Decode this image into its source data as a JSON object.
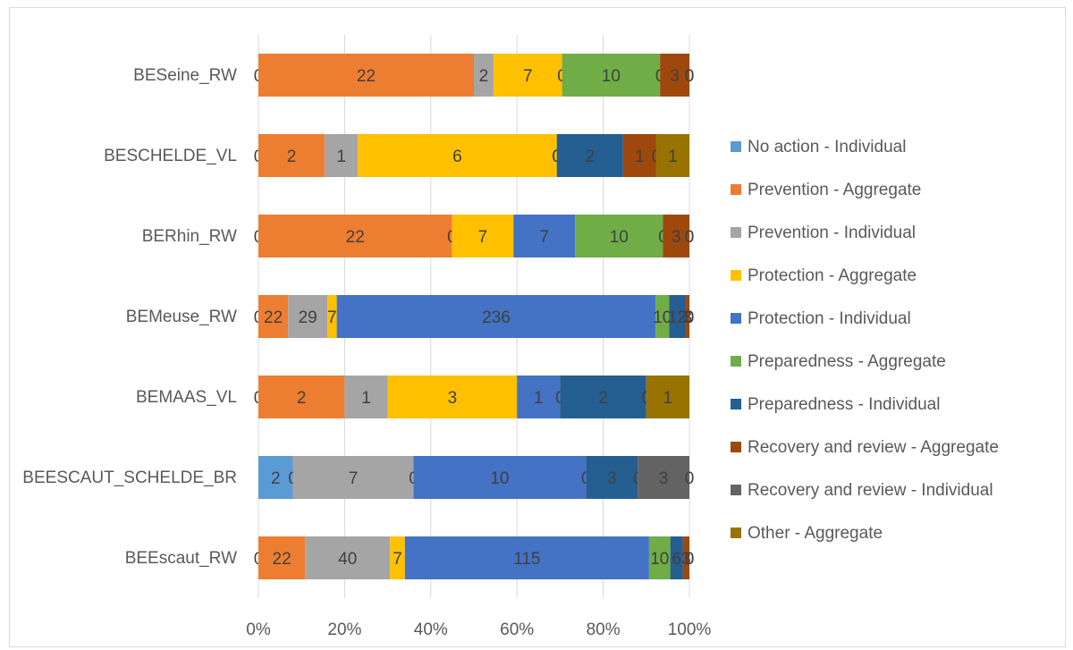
{
  "chart_data": {
    "type": "bar",
    "orientation": "horizontal",
    "stacked": "100%",
    "categories": [
      "BESeine_RW",
      "BESCHELDE_VL",
      "BERhin_RW",
      "BEMeuse_RW",
      "BEMAAS_VL",
      "BEESCAUT_SCHELDE_BR",
      "BEEscaut_RW"
    ],
    "series": [
      {
        "name": "No action - Individual",
        "color": "#5B9BD5",
        "values": [
          0,
          0,
          0,
          0,
          0,
          2,
          0
        ]
      },
      {
        "name": "Prevention - Aggregate",
        "color": "#ED7D31",
        "values": [
          22,
          2,
          22,
          22,
          2,
          0,
          22
        ]
      },
      {
        "name": "Prevention - Individual",
        "color": "#A5A5A5",
        "values": [
          2,
          1,
          0,
          29,
          1,
          7,
          40
        ]
      },
      {
        "name": "Protection - Aggregate",
        "color": "#FFC000",
        "values": [
          7,
          6,
          7,
          7,
          3,
          0,
          7
        ]
      },
      {
        "name": "Protection - Individual",
        "color": "#4472C4",
        "values": [
          0,
          0,
          7,
          236,
          1,
          10,
          115
        ]
      },
      {
        "name": "Preparedness - Aggregate",
        "color": "#70AD47",
        "values": [
          10,
          0,
          10,
          10,
          0,
          0,
          10
        ]
      },
      {
        "name": "Preparedness - Individual",
        "color": "#255E91",
        "values": [
          0,
          2,
          0,
          12,
          2,
          3,
          6
        ]
      },
      {
        "name": "Recovery and review - Aggregate",
        "color": "#9E480E",
        "values": [
          3,
          1,
          3,
          3,
          0,
          0,
          3
        ]
      },
      {
        "name": "Recovery and review - Individual",
        "color": "#636363",
        "values": [
          0,
          0,
          0,
          0,
          0,
          3,
          0
        ]
      },
      {
        "name": "Other - Aggregate",
        "color": "#997300",
        "values": [
          0,
          1,
          0,
          0,
          1,
          0,
          0
        ]
      }
    ],
    "x_ticks": [
      "0%",
      "20%",
      "40%",
      "60%",
      "80%",
      "100%"
    ],
    "xlim": [
      0,
      100
    ],
    "grid": "vertical",
    "legend": "right",
    "title": "",
    "xlabel": "",
    "ylabel": ""
  }
}
